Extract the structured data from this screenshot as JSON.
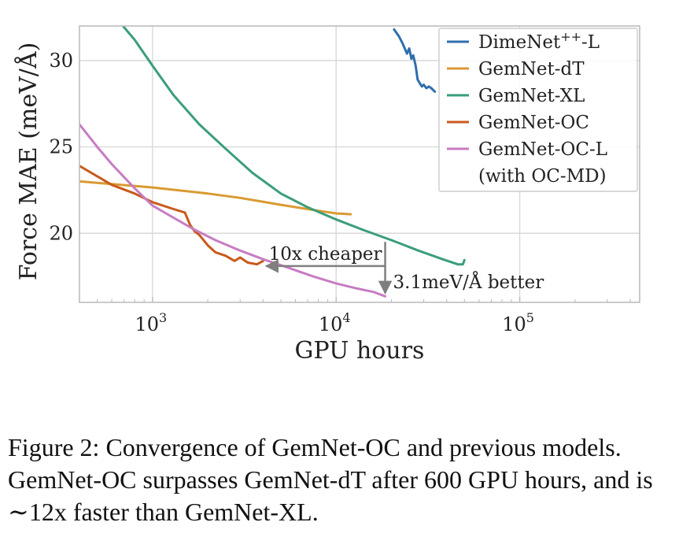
{
  "chart_data": {
    "type": "line",
    "xlabel": "GPU hours",
    "ylabel": "Force MAE (meV/Å)",
    "x_scale": "log",
    "xlim": [
      400,
      450000
    ],
    "ylim": [
      16,
      32
    ],
    "x_ticks": [
      {
        "value": 1000,
        "label": "10",
        "exp": "3"
      },
      {
        "value": 10000,
        "label": "10",
        "exp": "4"
      },
      {
        "value": 100000,
        "label": "10",
        "exp": "5"
      }
    ],
    "y_ticks": [
      {
        "value": 20,
        "label": "20"
      },
      {
        "value": 25,
        "label": "25"
      },
      {
        "value": 30,
        "label": "30"
      }
    ],
    "grid": true,
    "legend_position": "top-right",
    "series": [
      {
        "name": "DimeNet++-L",
        "name_base": "DimeNet",
        "name_sup": "++",
        "name_suffix": "-L",
        "color": "#2f6fad",
        "x": [
          20700,
          22000,
          23000,
          24300,
          25000,
          25700,
          26300,
          27100,
          27800,
          28500,
          29300,
          30000,
          31000,
          32000,
          33000,
          34500
        ],
        "y": [
          31.8,
          31.4,
          31.0,
          30.4,
          30.7,
          30.1,
          30.3,
          29.7,
          28.9,
          28.7,
          28.5,
          28.6,
          28.4,
          28.5,
          28.4,
          28.2
        ]
      },
      {
        "name": "GemNet-dT",
        "color": "#d99a33",
        "x": [
          400,
          600,
          1000,
          2000,
          3000,
          5000,
          8000,
          10000,
          12000
        ],
        "y": [
          23.0,
          22.85,
          22.65,
          22.3,
          22.05,
          21.65,
          21.3,
          21.15,
          21.1
        ]
      },
      {
        "name": "GemNet-XL",
        "color": "#3a9e7a",
        "x": [
          690,
          800,
          1000,
          1300,
          1800,
          2500,
          3500,
          5000,
          7000,
          10000,
          14000,
          20000,
          28000,
          38000,
          46000,
          49000,
          50000
        ],
        "y": [
          32.0,
          31.2,
          29.7,
          28.0,
          26.3,
          24.9,
          23.5,
          22.3,
          21.5,
          20.8,
          20.2,
          19.6,
          19.0,
          18.5,
          18.2,
          18.2,
          18.45
        ]
      },
      {
        "name": "GemNet-OC",
        "color": "#c85a1c",
        "x": [
          400,
          500,
          600,
          800,
          1000,
          1300,
          1500,
          1600,
          1700,
          1800,
          2000,
          2200,
          2500,
          2800,
          3000,
          3300,
          3700,
          4000
        ],
        "y": [
          23.9,
          23.3,
          22.8,
          22.3,
          21.8,
          21.4,
          21.2,
          20.5,
          20.1,
          19.9,
          19.3,
          18.9,
          18.7,
          18.4,
          18.6,
          18.3,
          18.2,
          18.4
        ]
      },
      {
        "name": "GemNet-OC-L",
        "name_line2": "(with OC-MD)",
        "color": "#c77cc2",
        "x": [
          400,
          500,
          600,
          800,
          1000,
          1300,
          1700,
          2200,
          3000,
          4000,
          5500,
          7500,
          10000,
          13000,
          16000,
          18500
        ],
        "y": [
          26.3,
          25.0,
          24.0,
          22.6,
          21.6,
          20.9,
          20.2,
          19.6,
          19.0,
          18.5,
          18.0,
          17.5,
          17.1,
          16.8,
          16.6,
          16.35
        ]
      }
    ],
    "annotations": [
      {
        "text": "10x cheaper",
        "type": "horizontal-arrow",
        "from": {
          "x": 18500,
          "y": 18.1
        },
        "to": {
          "x": 4000,
          "y": 18.1
        }
      },
      {
        "text": "3.1meV/Å better",
        "type": "vertical-arrow",
        "from": {
          "x": 18500,
          "y": 19.5
        },
        "to": {
          "x": 18500,
          "y": 16.35
        }
      }
    ]
  },
  "caption": "Figure 2: Convergence of GemNet-OC and previous models. GemNet-OC surpasses GemNet-dT after 600 GPU hours, and is ∼12x faster than GemNet-XL."
}
